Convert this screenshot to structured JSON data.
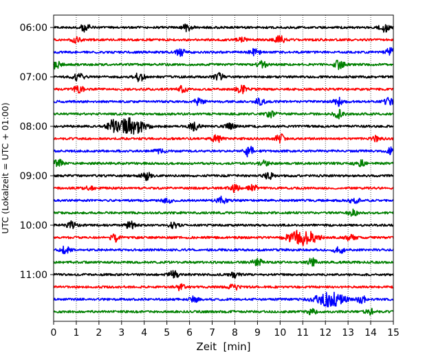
{
  "chart_data": {
    "type": "line",
    "title": "",
    "xlabel": "Zeit  [min]",
    "ylabel": "UTC (Lokalzeit = UTC + 01:00)",
    "xlim": [
      0,
      15
    ],
    "x_ticks": [
      0,
      1,
      2,
      3,
      4,
      5,
      6,
      7,
      8,
      9,
      10,
      11,
      12,
      13,
      14,
      15
    ],
    "x_tick_labels": [
      "0",
      "1",
      "2",
      "3",
      "4",
      "5",
      "6",
      "7",
      "8",
      "9",
      "10",
      "11",
      "12",
      "13",
      "14",
      "15"
    ],
    "y_tick_labels": [
      "06:00",
      "07:00",
      "08:00",
      "09:00",
      "10:00",
      "11:00"
    ],
    "x_grid": "dotted vertical lines at each minute",
    "trace_colors": [
      "#000000",
      "#ff0000",
      "#0000ff",
      "#008000"
    ],
    "traces": [
      {
        "start": "06:00",
        "events": [
          {
            "t": 1.4,
            "a": 0.6
          },
          {
            "t": 5.9,
            "a": 0.6
          },
          {
            "t": 14.6,
            "a": 0.7
          }
        ]
      },
      {
        "start": "06:15",
        "events": [
          {
            "t": 1.0,
            "a": 0.4
          },
          {
            "t": 8.3,
            "a": 0.4
          },
          {
            "t": 10.0,
            "a": 0.6
          }
        ]
      },
      {
        "start": "06:30",
        "events": [
          {
            "t": 5.6,
            "a": 0.5
          },
          {
            "t": 8.9,
            "a": 0.6
          },
          {
            "t": 14.9,
            "a": 0.7
          }
        ]
      },
      {
        "start": "06:45",
        "events": [
          {
            "t": 0.1,
            "a": 0.6
          },
          {
            "t": 9.2,
            "a": 0.6
          },
          {
            "t": 12.6,
            "a": 0.7
          }
        ]
      },
      {
        "start": "07:00",
        "events": [
          {
            "t": 1.1,
            "a": 0.6
          },
          {
            "t": 3.8,
            "a": 0.7
          },
          {
            "t": 7.3,
            "a": 0.6
          }
        ]
      },
      {
        "start": "07:15",
        "events": [
          {
            "t": 1.1,
            "a": 0.6
          },
          {
            "t": 5.7,
            "a": 0.5
          },
          {
            "t": 8.3,
            "a": 0.6
          }
        ]
      },
      {
        "start": "07:30",
        "events": [
          {
            "t": 6.4,
            "a": 0.5
          },
          {
            "t": 9.1,
            "a": 0.5
          },
          {
            "t": 12.6,
            "a": 0.6
          },
          {
            "t": 14.8,
            "a": 0.5
          }
        ]
      },
      {
        "start": "07:45",
        "events": [
          {
            "t": 9.6,
            "a": 0.5
          },
          {
            "t": 12.6,
            "a": 0.6
          }
        ]
      },
      {
        "start": "08:00",
        "events": [
          {
            "t": 2.6,
            "a": 0.8
          },
          {
            "t": 3.4,
            "a": 1.3
          },
          {
            "t": 6.2,
            "a": 0.6
          },
          {
            "t": 7.8,
            "a": 0.4
          }
        ]
      },
      {
        "start": "08:15",
        "events": [
          {
            "t": 7.2,
            "a": 0.6
          },
          {
            "t": 10.0,
            "a": 0.7
          },
          {
            "t": 14.3,
            "a": 0.5
          }
        ]
      },
      {
        "start": "08:30",
        "events": [
          {
            "t": 4.7,
            "a": 0.4
          },
          {
            "t": 8.6,
            "a": 0.9
          },
          {
            "t": 14.9,
            "a": 0.5
          }
        ]
      },
      {
        "start": "08:45",
        "events": [
          {
            "t": 0.2,
            "a": 0.6
          },
          {
            "t": 9.3,
            "a": 0.5
          },
          {
            "t": 13.5,
            "a": 0.6
          }
        ]
      },
      {
        "start": "09:00",
        "events": [
          {
            "t": 4.1,
            "a": 0.6
          },
          {
            "t": 9.5,
            "a": 0.5
          }
        ]
      },
      {
        "start": "09:15",
        "events": [
          {
            "t": 1.6,
            "a": 0.3
          },
          {
            "t": 8.0,
            "a": 0.6
          },
          {
            "t": 8.8,
            "a": 0.5
          }
        ]
      },
      {
        "start": "09:30",
        "events": [
          {
            "t": 5.0,
            "a": 0.4
          },
          {
            "t": 7.4,
            "a": 0.6
          },
          {
            "t": 13.3,
            "a": 0.5
          }
        ]
      },
      {
        "start": "09:45",
        "events": [
          {
            "t": 13.2,
            "a": 0.5
          }
        ]
      },
      {
        "start": "10:00",
        "events": [
          {
            "t": 0.8,
            "a": 0.6
          },
          {
            "t": 3.4,
            "a": 0.6
          },
          {
            "t": 5.3,
            "a": 0.4
          }
        ]
      },
      {
        "start": "10:15",
        "events": [
          {
            "t": 2.7,
            "a": 0.6
          },
          {
            "t": 11.0,
            "a": 1.2
          },
          {
            "t": 13.1,
            "a": 0.5
          }
        ]
      },
      {
        "start": "10:30",
        "events": [
          {
            "t": 0.5,
            "a": 0.5
          },
          {
            "t": 12.6,
            "a": 0.6
          }
        ]
      },
      {
        "start": "10:45",
        "events": [
          {
            "t": 9.0,
            "a": 0.6
          },
          {
            "t": 11.4,
            "a": 0.6
          }
        ]
      },
      {
        "start": "11:00",
        "events": [
          {
            "t": 5.3,
            "a": 0.6
          },
          {
            "t": 8.0,
            "a": 0.4
          }
        ]
      },
      {
        "start": "11:15",
        "events": [
          {
            "t": 5.6,
            "a": 0.5
          },
          {
            "t": 8.0,
            "a": 0.6
          }
        ]
      },
      {
        "start": "11:30",
        "events": [
          {
            "t": 6.2,
            "a": 0.4
          },
          {
            "t": 12.2,
            "a": 1.1
          },
          {
            "t": 13.6,
            "a": 0.5
          }
        ]
      },
      {
        "start": "11:45",
        "events": [
          {
            "t": 11.4,
            "a": 0.4
          },
          {
            "t": 14.0,
            "a": 0.5
          }
        ]
      }
    ]
  }
}
